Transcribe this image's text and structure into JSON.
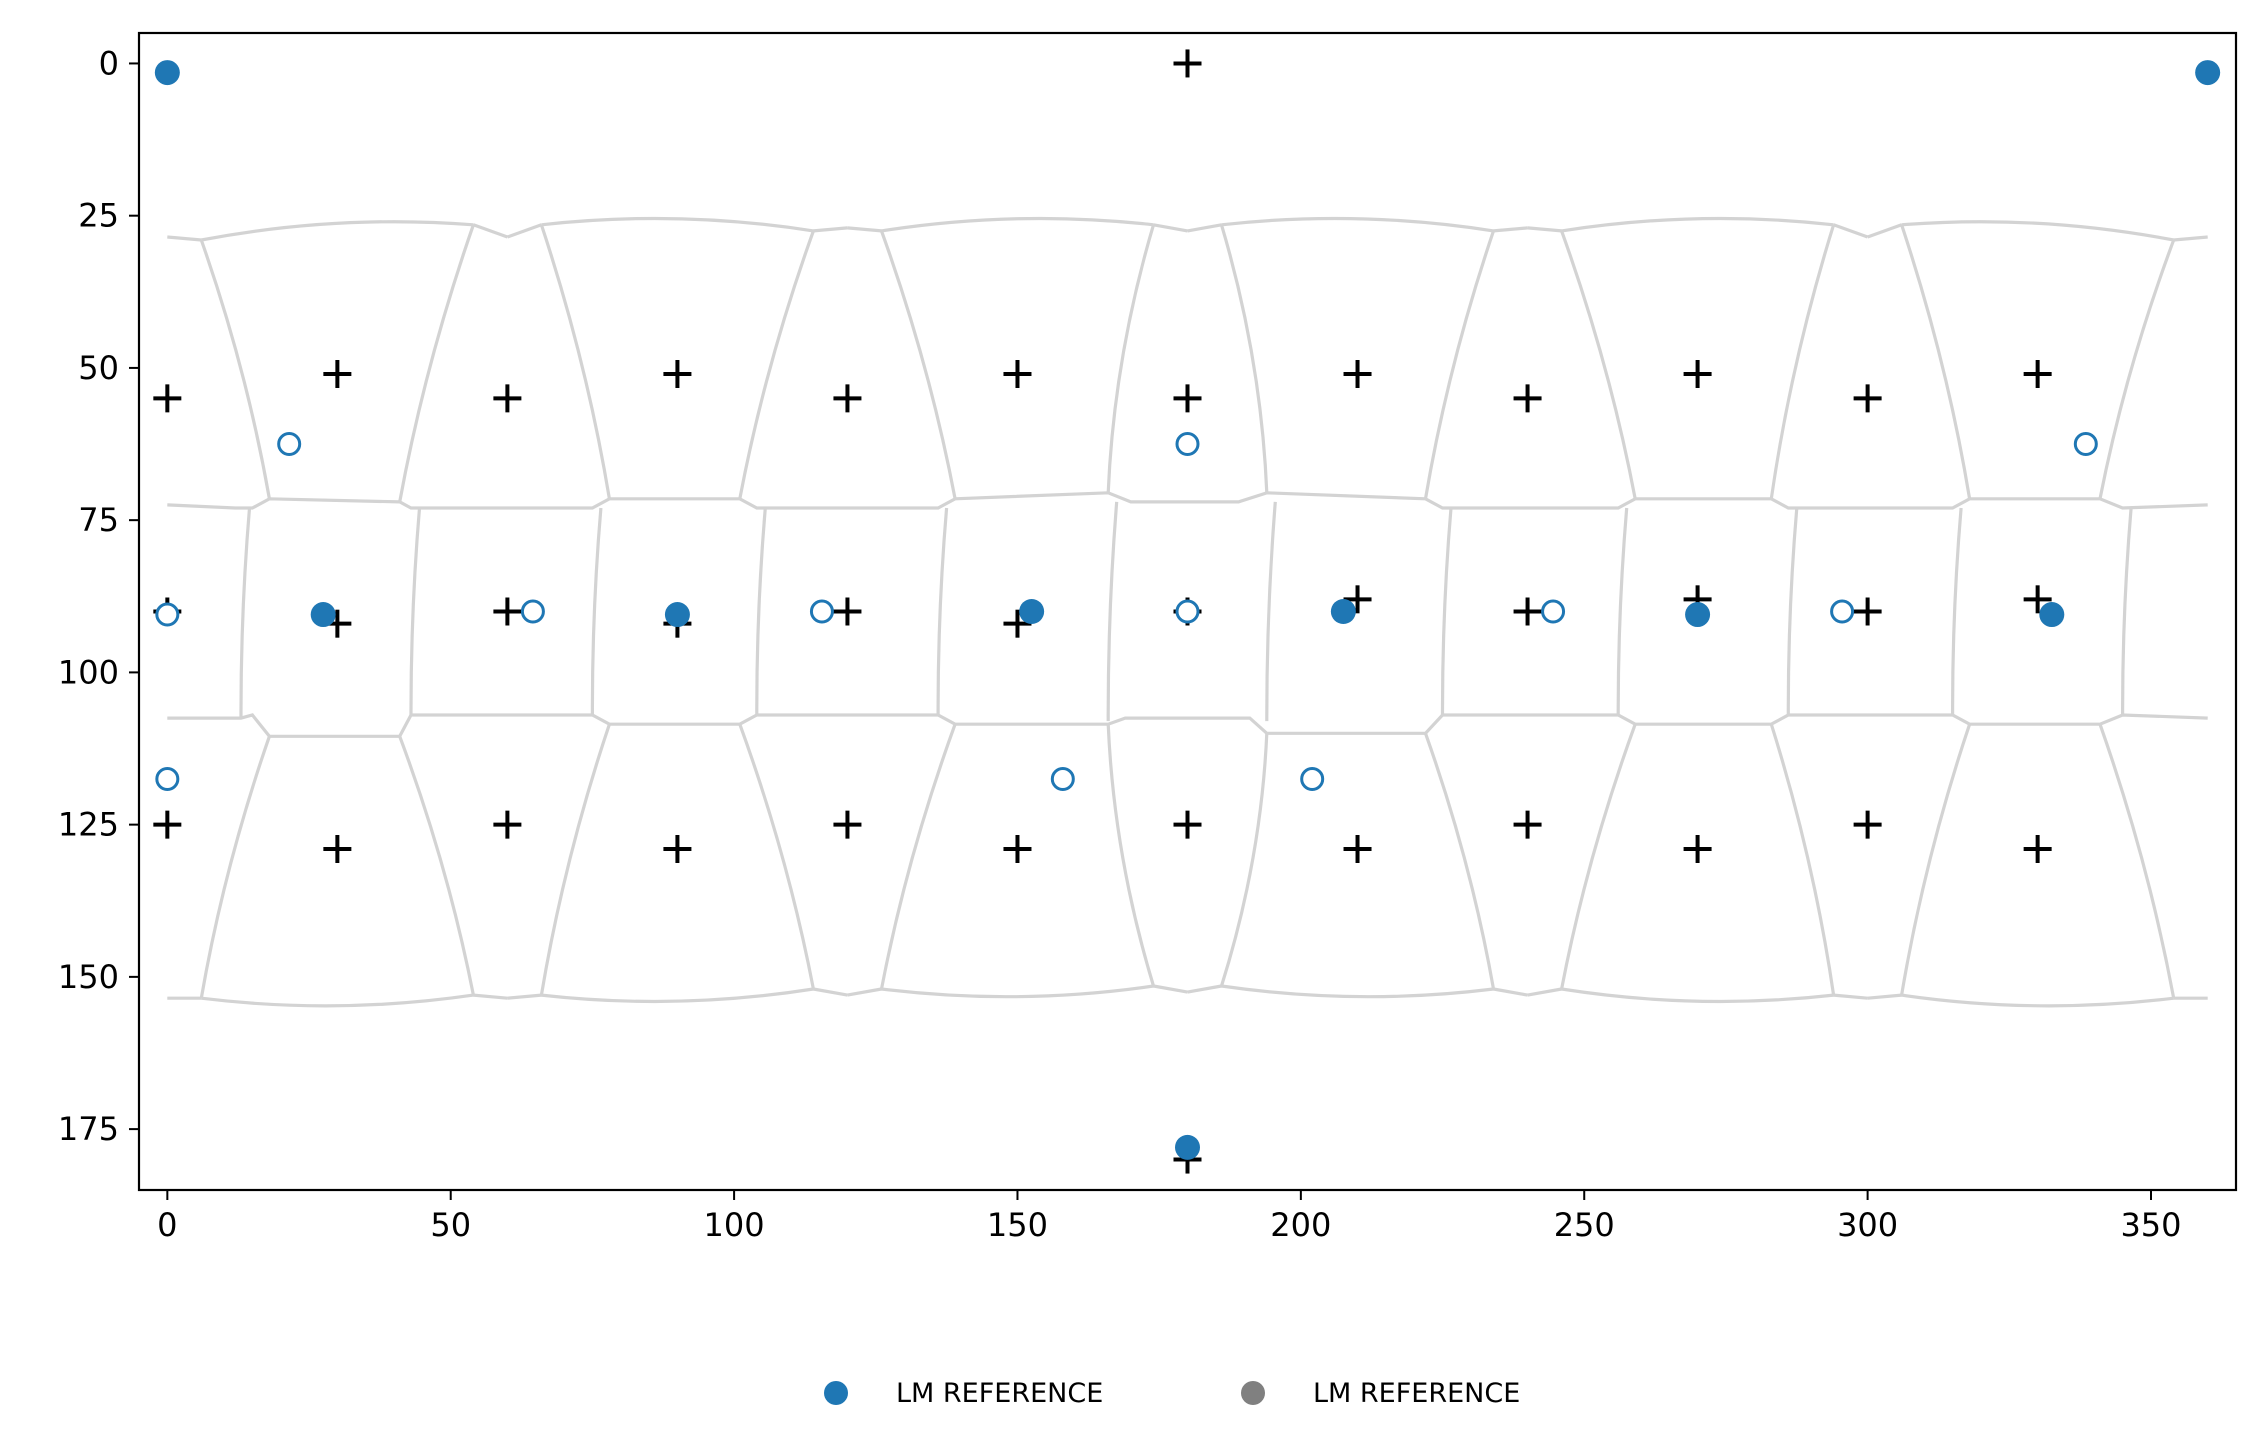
{
  "chart_data": {
    "type": "scatter",
    "title": "",
    "xlabel": "",
    "ylabel": "",
    "xlim": [
      -5,
      365
    ],
    "ylim": [
      185,
      -5
    ],
    "y_inverted": true,
    "xticks": [
      0,
      50,
      100,
      150,
      200,
      250,
      300,
      350
    ],
    "yticks": [
      0,
      25,
      50,
      75,
      100,
      125,
      150,
      175
    ],
    "grid": false,
    "legend_position": "bottom-center",
    "legend": [
      {
        "label": "LM REFERENCE",
        "color": "#1f77b4"
      },
      {
        "label": "LM REFERENCE",
        "color": "#808080"
      }
    ],
    "mesh_color": "#d3d3d3",
    "filled_color": "#1f77b4",
    "plus_color": "#000000",
    "plus_points": [
      [
        180,
        0
      ],
      [
        0,
        55
      ],
      [
        30,
        51
      ],
      [
        60,
        55
      ],
      [
        90,
        51
      ],
      [
        120,
        55
      ],
      [
        150,
        51
      ],
      [
        180,
        55
      ],
      [
        210,
        51
      ],
      [
        240,
        55
      ],
      [
        270,
        51
      ],
      [
        300,
        55
      ],
      [
        330,
        51
      ],
      [
        0,
        90
      ],
      [
        30,
        92
      ],
      [
        60,
        90
      ],
      [
        90,
        92
      ],
      [
        120,
        90
      ],
      [
        150,
        92
      ],
      [
        180,
        90
      ],
      [
        210,
        88
      ],
      [
        240,
        90
      ],
      [
        270,
        88
      ],
      [
        300,
        90
      ],
      [
        330,
        88
      ],
      [
        0,
        125
      ],
      [
        30,
        129
      ],
      [
        60,
        125
      ],
      [
        90,
        129
      ],
      [
        120,
        125
      ],
      [
        150,
        129
      ],
      [
        180,
        125
      ],
      [
        210,
        129
      ],
      [
        240,
        125
      ],
      [
        270,
        129
      ],
      [
        300,
        125
      ],
      [
        330,
        129
      ],
      [
        180,
        180
      ]
    ],
    "filled_points": [
      [
        0,
        1.5
      ],
      [
        360,
        1.5
      ],
      [
        27.5,
        90.5
      ],
      [
        90,
        90.5
      ],
      [
        152.5,
        90
      ],
      [
        207.5,
        90
      ],
      [
        270,
        90.5
      ],
      [
        332.5,
        90.5
      ],
      [
        180,
        178
      ]
    ],
    "open_points": [
      [
        21.5,
        62.5
      ],
      [
        180,
        62.5
      ],
      [
        338.5,
        62.5
      ],
      [
        0,
        90.5
      ],
      [
        64.5,
        90
      ],
      [
        115.5,
        90
      ],
      [
        180,
        90
      ],
      [
        244.5,
        90
      ],
      [
        295.5,
        90
      ],
      [
        0,
        117.5
      ],
      [
        158,
        117.5
      ],
      [
        202,
        117.5
      ]
    ]
  }
}
